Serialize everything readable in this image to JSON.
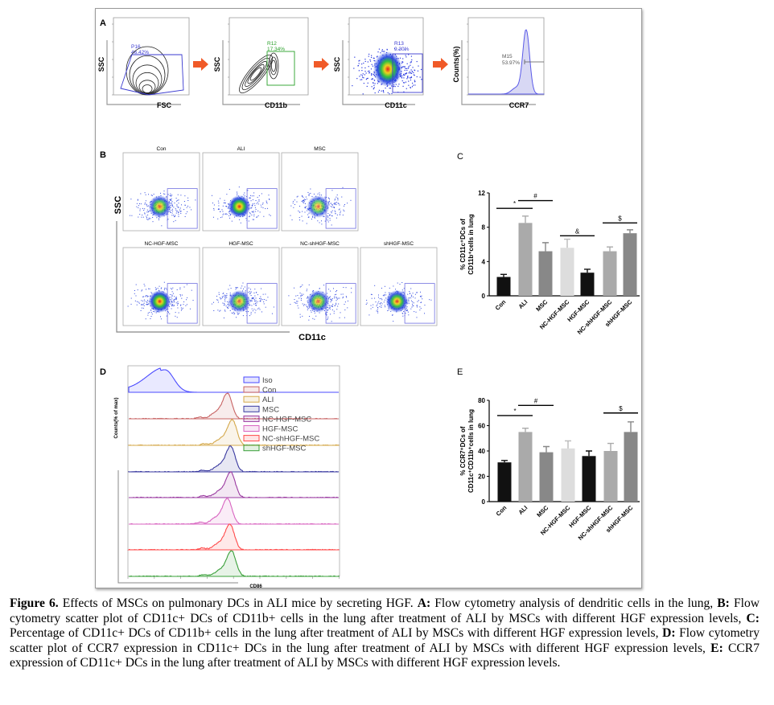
{
  "panel_a": {
    "label": "A",
    "plots": [
      {
        "x_label": "FSC",
        "y_label": "SSC",
        "gate_name": "P16",
        "gate_value": "46.42%",
        "gate_color": "#3a3ad0"
      },
      {
        "x_label": "CD11b",
        "y_label": "SSC",
        "gate_name": "R12",
        "gate_value": "17.34%",
        "gate_color": "#2aa02a"
      },
      {
        "x_label": "CD11c",
        "y_label": "SSC",
        "gate_name": "R13",
        "gate_value": "9.30%",
        "gate_color": "#3a3ad0"
      },
      {
        "x_label": "CCR7",
        "y_label": "Counts(%)",
        "gate_name": "M15",
        "gate_value": "53.97%",
        "gate_color": "#555555"
      }
    ],
    "arrow_color": "#f05a28"
  },
  "panel_b": {
    "label": "B",
    "titles": [
      "Con",
      "ALI",
      "MSC",
      "NC-HGF-MSC",
      "HGF-MSC",
      "NC-shHGF-MSC",
      "shHGF-MSC"
    ],
    "x_label": "CD11c",
    "y_label": "SSC",
    "gate_color": "#7070e0"
  },
  "chart_data": [
    {
      "panel": "C",
      "type": "bar",
      "categories": [
        "Con",
        "ALI",
        "MSC",
        "NC-HGF-MSC",
        "HGF-MSC",
        "NC-shHGF-MSC",
        "shHGF-MSC"
      ],
      "values": [
        2.2,
        8.5,
        5.2,
        5.6,
        2.7,
        5.2,
        7.3
      ],
      "errors": [
        0.3,
        0.8,
        1.0,
        1.0,
        0.4,
        0.5,
        0.4
      ],
      "colors": [
        "#111111",
        "#aaaaaa",
        "#888888",
        "#dddddd",
        "#111111",
        "#aaaaaa",
        "#888888"
      ],
      "ylabel_lines": [
        "% CD11c⁺DCs of",
        "CD11b⁺cells in lung"
      ],
      "ylim": [
        0,
        12
      ],
      "yticks": [
        0,
        4,
        8,
        12
      ],
      "significance": [
        {
          "from": 0,
          "to": 1,
          "y": 10.2,
          "label": "*"
        },
        {
          "from": 1,
          "to": 2,
          "y": 11.1,
          "label": "#"
        },
        {
          "from": 3,
          "to": 4,
          "y": 7.0,
          "label": "&"
        },
        {
          "from": 5,
          "to": 6,
          "y": 8.5,
          "label": "$"
        }
      ]
    },
    {
      "panel": "E",
      "type": "bar",
      "categories": [
        "Con",
        "ALI",
        "MSC",
        "NC-HGF-MSC",
        "HGF-MSC",
        "NC-shHGF-MSC",
        "shHGF-MSC"
      ],
      "values": [
        31,
        55,
        39,
        42,
        36,
        40,
        55
      ],
      "errors": [
        1.5,
        3,
        4.5,
        6,
        4,
        6,
        8
      ],
      "colors": [
        "#111111",
        "#aaaaaa",
        "#888888",
        "#dddddd",
        "#111111",
        "#aaaaaa",
        "#888888"
      ],
      "ylabel_lines": [
        "% CCR7⁺DCs of",
        "CD11c⁺CD11b⁺cells in lung"
      ],
      "ylim": [
        0,
        80
      ],
      "yticks": [
        0,
        20,
        40,
        60,
        80
      ],
      "significance": [
        {
          "from": 0,
          "to": 1,
          "y": 68,
          "label": "*"
        },
        {
          "from": 1,
          "to": 2,
          "y": 76,
          "label": "#"
        },
        {
          "from": 5,
          "to": 6,
          "y": 70,
          "label": "$"
        }
      ]
    }
  ],
  "panel_c": {
    "label": "C"
  },
  "panel_e": {
    "label": "E"
  },
  "panel_d": {
    "label": "D",
    "x_label": "CD86",
    "y_label": "Counts(% of max)",
    "series": [
      {
        "name": "Iso",
        "color": "#4a4aff"
      },
      {
        "name": "Con",
        "color": "#c86464"
      },
      {
        "name": "ALI",
        "color": "#d4a84a"
      },
      {
        "name": "MSC",
        "color": "#3a3aa0"
      },
      {
        "name": "NC-HGF-MSC",
        "color": "#9a3aa0"
      },
      {
        "name": "HGF-MSC",
        "color": "#d864c0"
      },
      {
        "name": "NC-shHGF-MSC",
        "color": "#ff4a4a"
      },
      {
        "name": "shHGF-MSC",
        "color": "#3aa03a"
      }
    ]
  },
  "caption": {
    "figure_label": "Figure 6.",
    "title": " Effects of MSCs on pulmonary DCs in ALI mice by secreting HGF. ",
    "a_label": "A:",
    "a_text": " Flow cytometry analysis of dendritic cells in the lung, ",
    "b_label": "B:",
    "b_text": " Flow cytometry scatter plot of CD11c+ DCs of CD11b+ cells in the lung after treatment of ALI by MSCs with different HGF expression levels, ",
    "c_label": "C:",
    "c_text": " Percentage of CD11c+ DCs of CD11b+ cells in the lung after treatment of ALI by MSCs with different HGF expression levels, ",
    "d_label": "D:",
    "d_text": " Flow cytometry scatter plot of CCR7 expression in CD11c+ DCs in the lung after treatment of ALI by MSCs with different HGF expression levels, ",
    "e_label": "E:",
    "e_text": " CCR7 expression of CD11c+ DCs in the lung after treatment of ALI by MSCs with different HGF expression levels."
  }
}
